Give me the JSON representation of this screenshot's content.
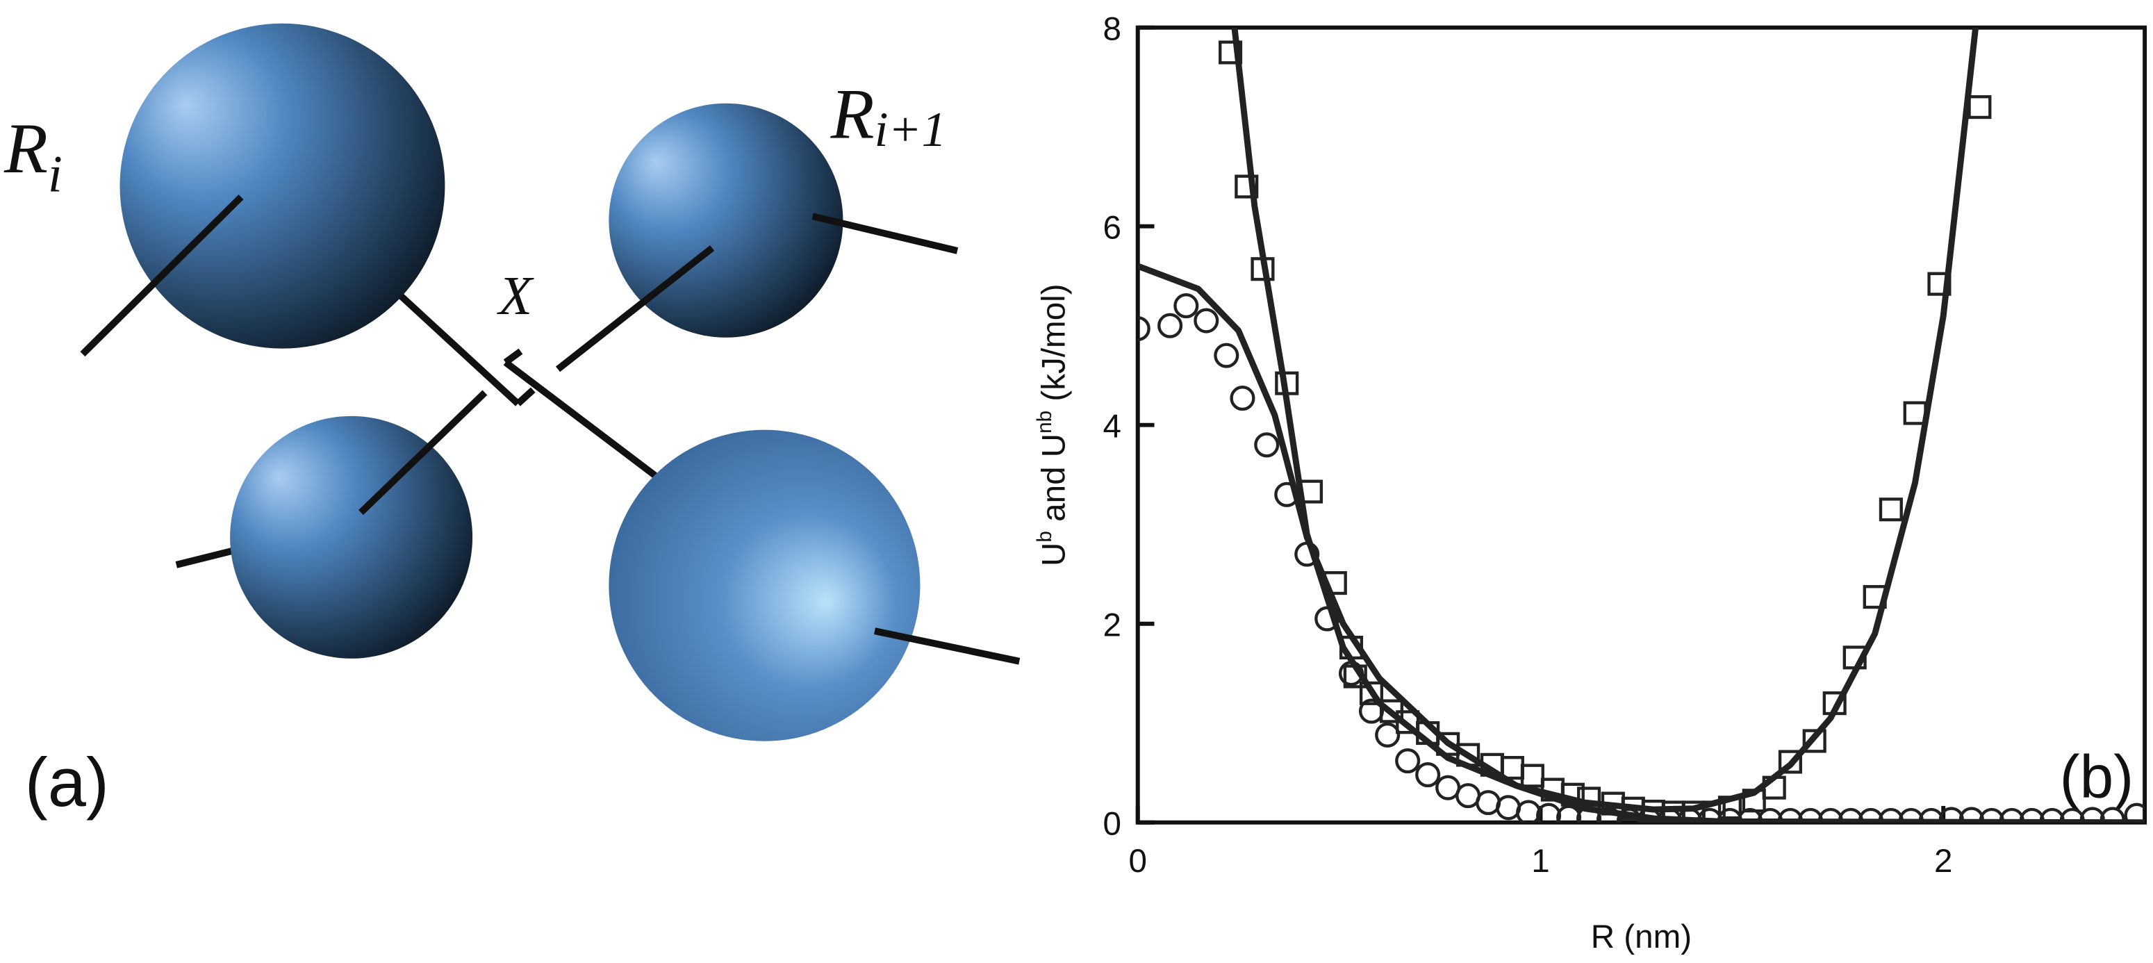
{
  "diagram": {
    "label": "(a)",
    "atoms": [
      {
        "label": "R",
        "subscript": "i"
      },
      {
        "label": "R",
        "subscript": "i+1"
      }
    ],
    "center_label": "X"
  },
  "chart_data": {
    "type": "scatter",
    "annotation": "(b)",
    "xlabel": "R (nm)",
    "ylabel": [
      "U",
      "b",
      " and U",
      "nb",
      " (kJ/mol)"
    ],
    "xlim": [
      0,
      2.5
    ],
    "ylim": [
      0,
      8
    ],
    "xticks": [
      0,
      1,
      2
    ],
    "yticks": [
      0,
      2,
      4,
      6,
      8
    ],
    "series": [
      {
        "style": "circle",
        "color": "#222222",
        "x": [
          0.0,
          0.08,
          0.12,
          0.17,
          0.22,
          0.26,
          0.32,
          0.37,
          0.42,
          0.47,
          0.53,
          0.58,
          0.62,
          0.67,
          0.72,
          0.77,
          0.82,
          0.87,
          0.92,
          0.97,
          1.02,
          1.07,
          1.12,
          1.17,
          1.22,
          1.27,
          1.32,
          1.37,
          1.42,
          1.47,
          1.52,
          1.57,
          1.62,
          1.67,
          1.72,
          1.77,
          1.82,
          1.87,
          1.92,
          1.97,
          2.02,
          2.07,
          2.12,
          2.17,
          2.22,
          2.27,
          2.32,
          2.37,
          2.42,
          2.48
        ],
        "values": [
          4.97,
          5.0,
          5.2,
          5.05,
          4.7,
          4.27,
          3.8,
          3.3,
          2.7,
          2.05,
          1.5,
          1.12,
          0.88,
          0.62,
          0.48,
          0.35,
          0.27,
          0.2,
          0.15,
          0.1,
          0.07,
          0.05,
          0.04,
          0.03,
          0.02,
          0.02,
          0.02,
          0.02,
          0.02,
          0.02,
          0.02,
          0.02,
          0.02,
          0.02,
          0.02,
          0.02,
          0.02,
          0.02,
          0.02,
          0.02,
          0.03,
          0.03,
          0.02,
          0.02,
          0.02,
          0.02,
          0.02,
          0.03,
          0.03,
          0.07
        ]
      },
      {
        "style": "square",
        "color": "#222222",
        "x": [
          0.23,
          0.27,
          0.31,
          0.37,
          0.43,
          0.49,
          0.53,
          0.54,
          0.58,
          0.63,
          0.67,
          0.72,
          0.77,
          0.82,
          0.88,
          0.93,
          0.98,
          1.03,
          1.08,
          1.12,
          1.18,
          1.23,
          1.28,
          1.33,
          1.38,
          1.43,
          1.47,
          1.53,
          1.58,
          1.62,
          1.68,
          1.73,
          1.78,
          1.83,
          1.87,
          1.93,
          1.99,
          2.09
        ],
        "values": [
          7.75,
          6.4,
          5.57,
          4.42,
          3.33,
          2.41,
          1.76,
          1.47,
          1.3,
          1.12,
          1.01,
          0.9,
          0.79,
          0.68,
          0.58,
          0.55,
          0.47,
          0.33,
          0.28,
          0.24,
          0.19,
          0.14,
          0.11,
          0.1,
          0.1,
          0.1,
          0.15,
          0.22,
          0.35,
          0.61,
          0.82,
          1.2,
          1.66,
          2.27,
          3.15,
          4.12,
          5.42,
          7.2
        ]
      },
      {
        "style": "line",
        "color": "#222222",
        "x": [
          0.24,
          0.29,
          0.36,
          0.42,
          0.51,
          0.6,
          0.77,
          0.94,
          1.11,
          1.28,
          1.38,
          1.53,
          1.62,
          1.72,
          1.83,
          1.93,
          2.0,
          2.05,
          2.08
        ],
        "values": [
          8,
          6.2,
          4.5,
          2.9,
          1.76,
          1.2,
          0.65,
          0.37,
          0.2,
          0.13,
          0.14,
          0.3,
          0.58,
          1.05,
          1.9,
          3.42,
          5.1,
          6.9,
          8
        ]
      },
      {
        "style": "line",
        "color": "#222222",
        "x": [
          0.0,
          0.15,
          0.25,
          0.34,
          0.42,
          0.51,
          0.6,
          0.77,
          0.94,
          1.11,
          1.28,
          1.45,
          2.5
        ],
        "values": [
          5.6,
          5.37,
          4.95,
          4.1,
          2.87,
          2.0,
          1.45,
          0.8,
          0.37,
          0.14,
          0.04,
          0.01,
          0.0
        ]
      }
    ]
  }
}
